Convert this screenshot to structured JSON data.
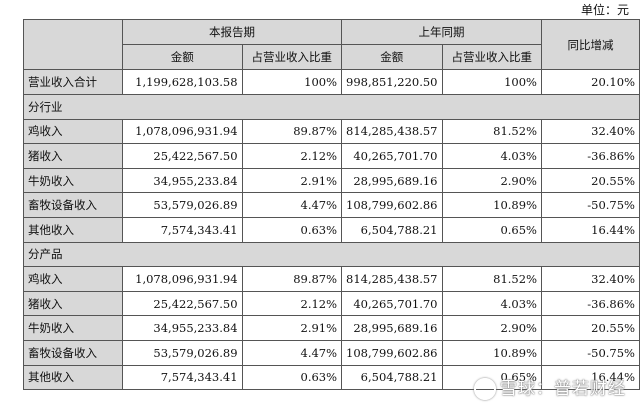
{
  "unit_label": "单位：元",
  "header": {
    "current_period": "本报告期",
    "prior_period": "上年同期",
    "yoy": "同比增减",
    "amount": "金额",
    "share": "占营业收入比重"
  },
  "total": {
    "label": "营业收入合计",
    "amount": "1,199,628,103.58",
    "share": "100%",
    "prior_amount": "998,851,220.50",
    "prior_share": "100%",
    "yoy": "20.10%"
  },
  "sections": [
    {
      "title": "分行业",
      "rows": [
        {
          "label": "鸡收入",
          "amount": "1,078,096,931.94",
          "share": "89.87%",
          "prior_amount": "814,285,438.57",
          "prior_share": "81.52%",
          "yoy": "32.40%"
        },
        {
          "label": "猪收入",
          "amount": "25,422,567.50",
          "share": "2.12%",
          "prior_amount": "40,265,701.70",
          "prior_share": "4.03%",
          "yoy": "-36.86%"
        },
        {
          "label": "牛奶收入",
          "amount": "34,955,233.84",
          "share": "2.91%",
          "prior_amount": "28,995,689.16",
          "prior_share": "2.90%",
          "yoy": "20.55%"
        },
        {
          "label": "畜牧设备收入",
          "amount": "53,579,026.89",
          "share": "4.47%",
          "prior_amount": "108,799,602.86",
          "prior_share": "10.89%",
          "yoy": "-50.75%"
        },
        {
          "label": "其他收入",
          "amount": "7,574,343.41",
          "share": "0.63%",
          "prior_amount": "6,504,788.21",
          "prior_share": "0.65%",
          "yoy": "16.44%"
        }
      ]
    },
    {
      "title": "分产品",
      "rows": [
        {
          "label": "鸡收入",
          "amount": "1,078,096,931.94",
          "share": "89.87%",
          "prior_amount": "814,285,438.57",
          "prior_share": "81.52%",
          "yoy": "32.40%"
        },
        {
          "label": "猪收入",
          "amount": "25,422,567.50",
          "share": "2.12%",
          "prior_amount": "40,265,701.70",
          "prior_share": "4.03%",
          "yoy": "-36.86%"
        },
        {
          "label": "牛奶收入",
          "amount": "34,955,233.84",
          "share": "2.91%",
          "prior_amount": "28,995,689.16",
          "prior_share": "2.90%",
          "yoy": "20.55%"
        },
        {
          "label": "畜牧设备收入",
          "amount": "53,579,026.89",
          "share": "4.47%",
          "prior_amount": "108,799,602.86",
          "prior_share": "10.89%",
          "yoy": "-50.75%"
        },
        {
          "label": "其他收入",
          "amount": "7,574,343.41",
          "share": "0.63%",
          "prior_amount": "6,504,788.21",
          "prior_share": "0.65%",
          "yoy": "16.44%"
        }
      ]
    }
  ],
  "watermark": "雪球：普若财经"
}
